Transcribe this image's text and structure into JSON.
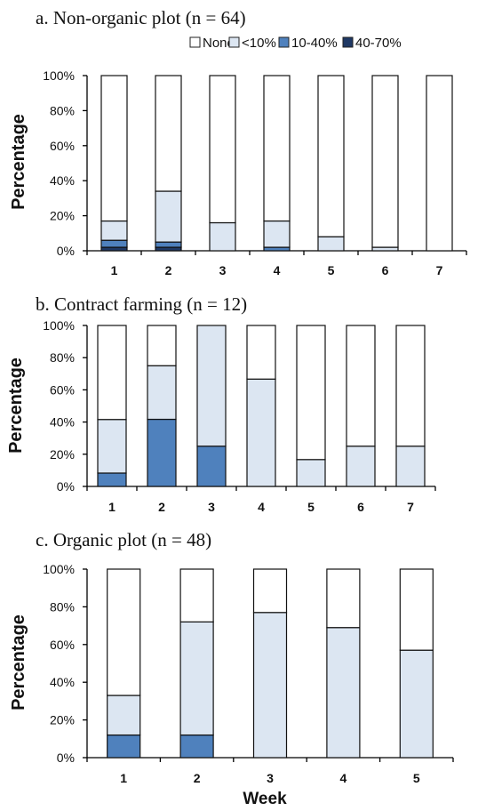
{
  "colors": {
    "None": "#ffffff",
    "<10%": "#dce6f2",
    "10-40%": "#4f81bd",
    "40-70%": "#1f3864"
  },
  "legend": {
    "items": [
      {
        "label": "None",
        "color": "#ffffff"
      },
      {
        "label": "<10%",
        "color": "#dce6f2"
      },
      {
        "label": "10-40%",
        "color": "#4f81bd"
      },
      {
        "label": "40-70%",
        "color": "#1f3864"
      }
    ]
  },
  "chart_data": [
    {
      "type": "bar",
      "stacked": true,
      "title": "a. Non-organic plot (n = 64)",
      "ylabel": "Percentage",
      "xlabel": "",
      "ylim": [
        0,
        100
      ],
      "yticks": [
        "0%",
        "20%",
        "40%",
        "60%",
        "80%",
        "100%"
      ],
      "categories": [
        "1",
        "2",
        "3",
        "4",
        "5",
        "6",
        "7"
      ],
      "series": [
        {
          "name": "40-70%",
          "values": [
            2,
            2,
            0,
            0,
            0,
            0,
            0
          ]
        },
        {
          "name": "10-40%",
          "values": [
            4,
            3,
            0,
            2,
            0,
            0,
            0
          ]
        },
        {
          "name": "<10%",
          "values": [
            11,
            29,
            16,
            15,
            8,
            2,
            0
          ]
        },
        {
          "name": "None",
          "values": [
            83,
            66,
            84,
            83,
            92,
            98,
            100
          ]
        }
      ]
    },
    {
      "type": "bar",
      "stacked": true,
      "title": "b. Contract farming (n = 12)",
      "ylabel": "Percentage",
      "xlabel": "",
      "ylim": [
        0,
        100
      ],
      "yticks": [
        "0%",
        "20%",
        "40%",
        "60%",
        "80%",
        "100%"
      ],
      "categories": [
        "1",
        "2",
        "3",
        "4",
        "5",
        "6",
        "7"
      ],
      "series": [
        {
          "name": "10-40%",
          "values": [
            8.3,
            41.7,
            25,
            0,
            0,
            0,
            0
          ]
        },
        {
          "name": "<10%",
          "values": [
            33.3,
            33.3,
            75,
            66.7,
            16.7,
            25,
            25
          ]
        },
        {
          "name": "None",
          "values": [
            58.4,
            25,
            0,
            33.3,
            83.3,
            75,
            75
          ]
        }
      ]
    },
    {
      "type": "bar",
      "stacked": true,
      "title": "c. Organic plot (n = 48)",
      "ylabel": "Percentage",
      "xlabel": "Week",
      "ylim": [
        0,
        100
      ],
      "yticks": [
        "0%",
        "20%",
        "40%",
        "60%",
        "80%",
        "100%"
      ],
      "categories": [
        "1",
        "2",
        "3",
        "4",
        "5"
      ],
      "series": [
        {
          "name": "10-40%",
          "values": [
            12,
            12,
            0,
            0,
            0
          ]
        },
        {
          "name": "<10%",
          "values": [
            21,
            60,
            77,
            69,
            57
          ]
        },
        {
          "name": "None",
          "values": [
            67,
            28,
            23,
            31,
            43
          ]
        }
      ]
    }
  ]
}
